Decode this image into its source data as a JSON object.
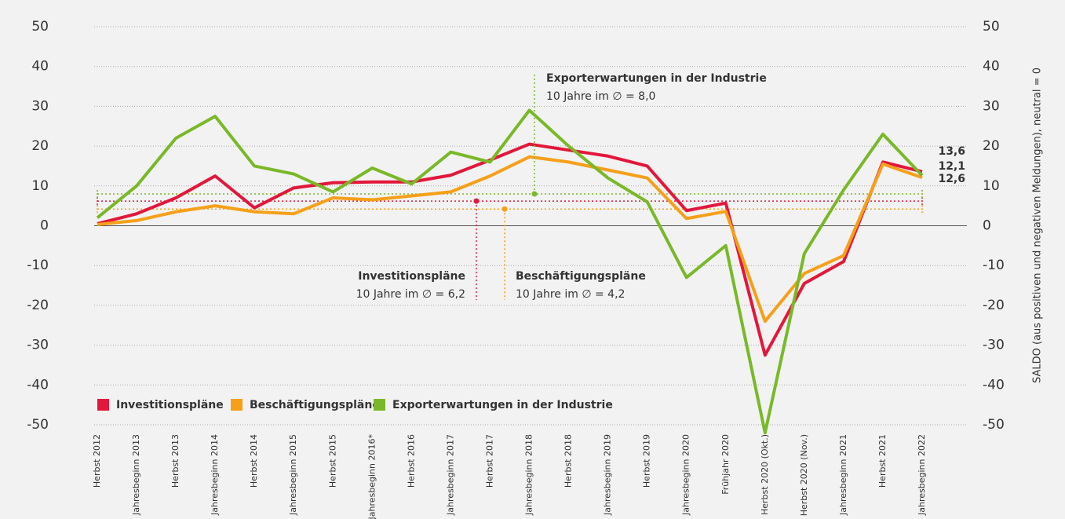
{
  "chart_data": {
    "type": "line",
    "y2label": "SALDO (aus positiven und negativen Meldungen), neutral = 0",
    "categories": [
      "Herbst 2012",
      "Jahresbeginn 2013",
      "Herbst 2013",
      "Jahresbeginn 2014",
      "Herbst 2014",
      "Jahresbeginn 2015",
      "Herbst 2015",
      "Jahresbeginn 2016*",
      "Herbst 2016",
      "Jahresbeginn 2017",
      "Herbst 2017",
      "Jahresbeginn 2018",
      "Herbst 2018",
      "Jahresbeginn 2019",
      "Herbst 2019",
      "Jahresbeginn 2020",
      "Frühjahr 2020",
      "Herbst 2020 (Okt.)",
      "Herbst 2020 (Nov.)",
      "Jahresbeginn 2021",
      "Herbst 2021",
      "Jahresbeginn 2022"
    ],
    "ylim": [
      -50,
      50
    ],
    "yticks": [
      -50,
      -40,
      -30,
      -20,
      -10,
      0,
      10,
      20,
      30,
      40,
      50
    ],
    "y2lim": [
      -50,
      50
    ],
    "y2ticks": [
      -50,
      -40,
      -30,
      -20,
      -10,
      0,
      10,
      20,
      30,
      40,
      50
    ],
    "grid": true,
    "series": [
      {
        "name": "Investitionspläne",
        "color": "#e2173b",
        "values": [
          0.5,
          3,
          7,
          12.5,
          4.5,
          9.5,
          10.8,
          11,
          11,
          12.7,
          16.5,
          20.5,
          19,
          17.5,
          15,
          3.8,
          5.7,
          -32.5,
          -14.5,
          -9,
          16,
          13.6
        ],
        "end_label": "13,6",
        "average": 6.2,
        "average_label": "10 Jahre im ∅ = 6,2"
      },
      {
        "name": "Beschäftigungspläne",
        "color": "#f5a01a",
        "values": [
          0.3,
          1.3,
          3.5,
          5,
          3.5,
          3,
          7,
          6.5,
          7.5,
          8.5,
          12.5,
          17.3,
          16,
          14,
          12,
          1.8,
          3.6,
          -24,
          -12,
          -7.5,
          15.5,
          12.1
        ],
        "end_label": "12,1",
        "average": 4.2,
        "average_label": "10 Jahre im ∅ = 4,2"
      },
      {
        "name": "Exporterwartungen in der Industrie",
        "color": "#7ab829",
        "values": [
          2,
          10,
          22,
          27.5,
          15,
          13,
          8.5,
          14.5,
          10.5,
          18.5,
          16,
          29,
          20,
          12,
          6,
          -13,
          -5,
          -52,
          -7,
          9,
          23,
          12.6
        ],
        "end_label": "12,6",
        "average": 8.0,
        "average_label": "10 Jahre im ∅ = 8,0"
      }
    ]
  }
}
